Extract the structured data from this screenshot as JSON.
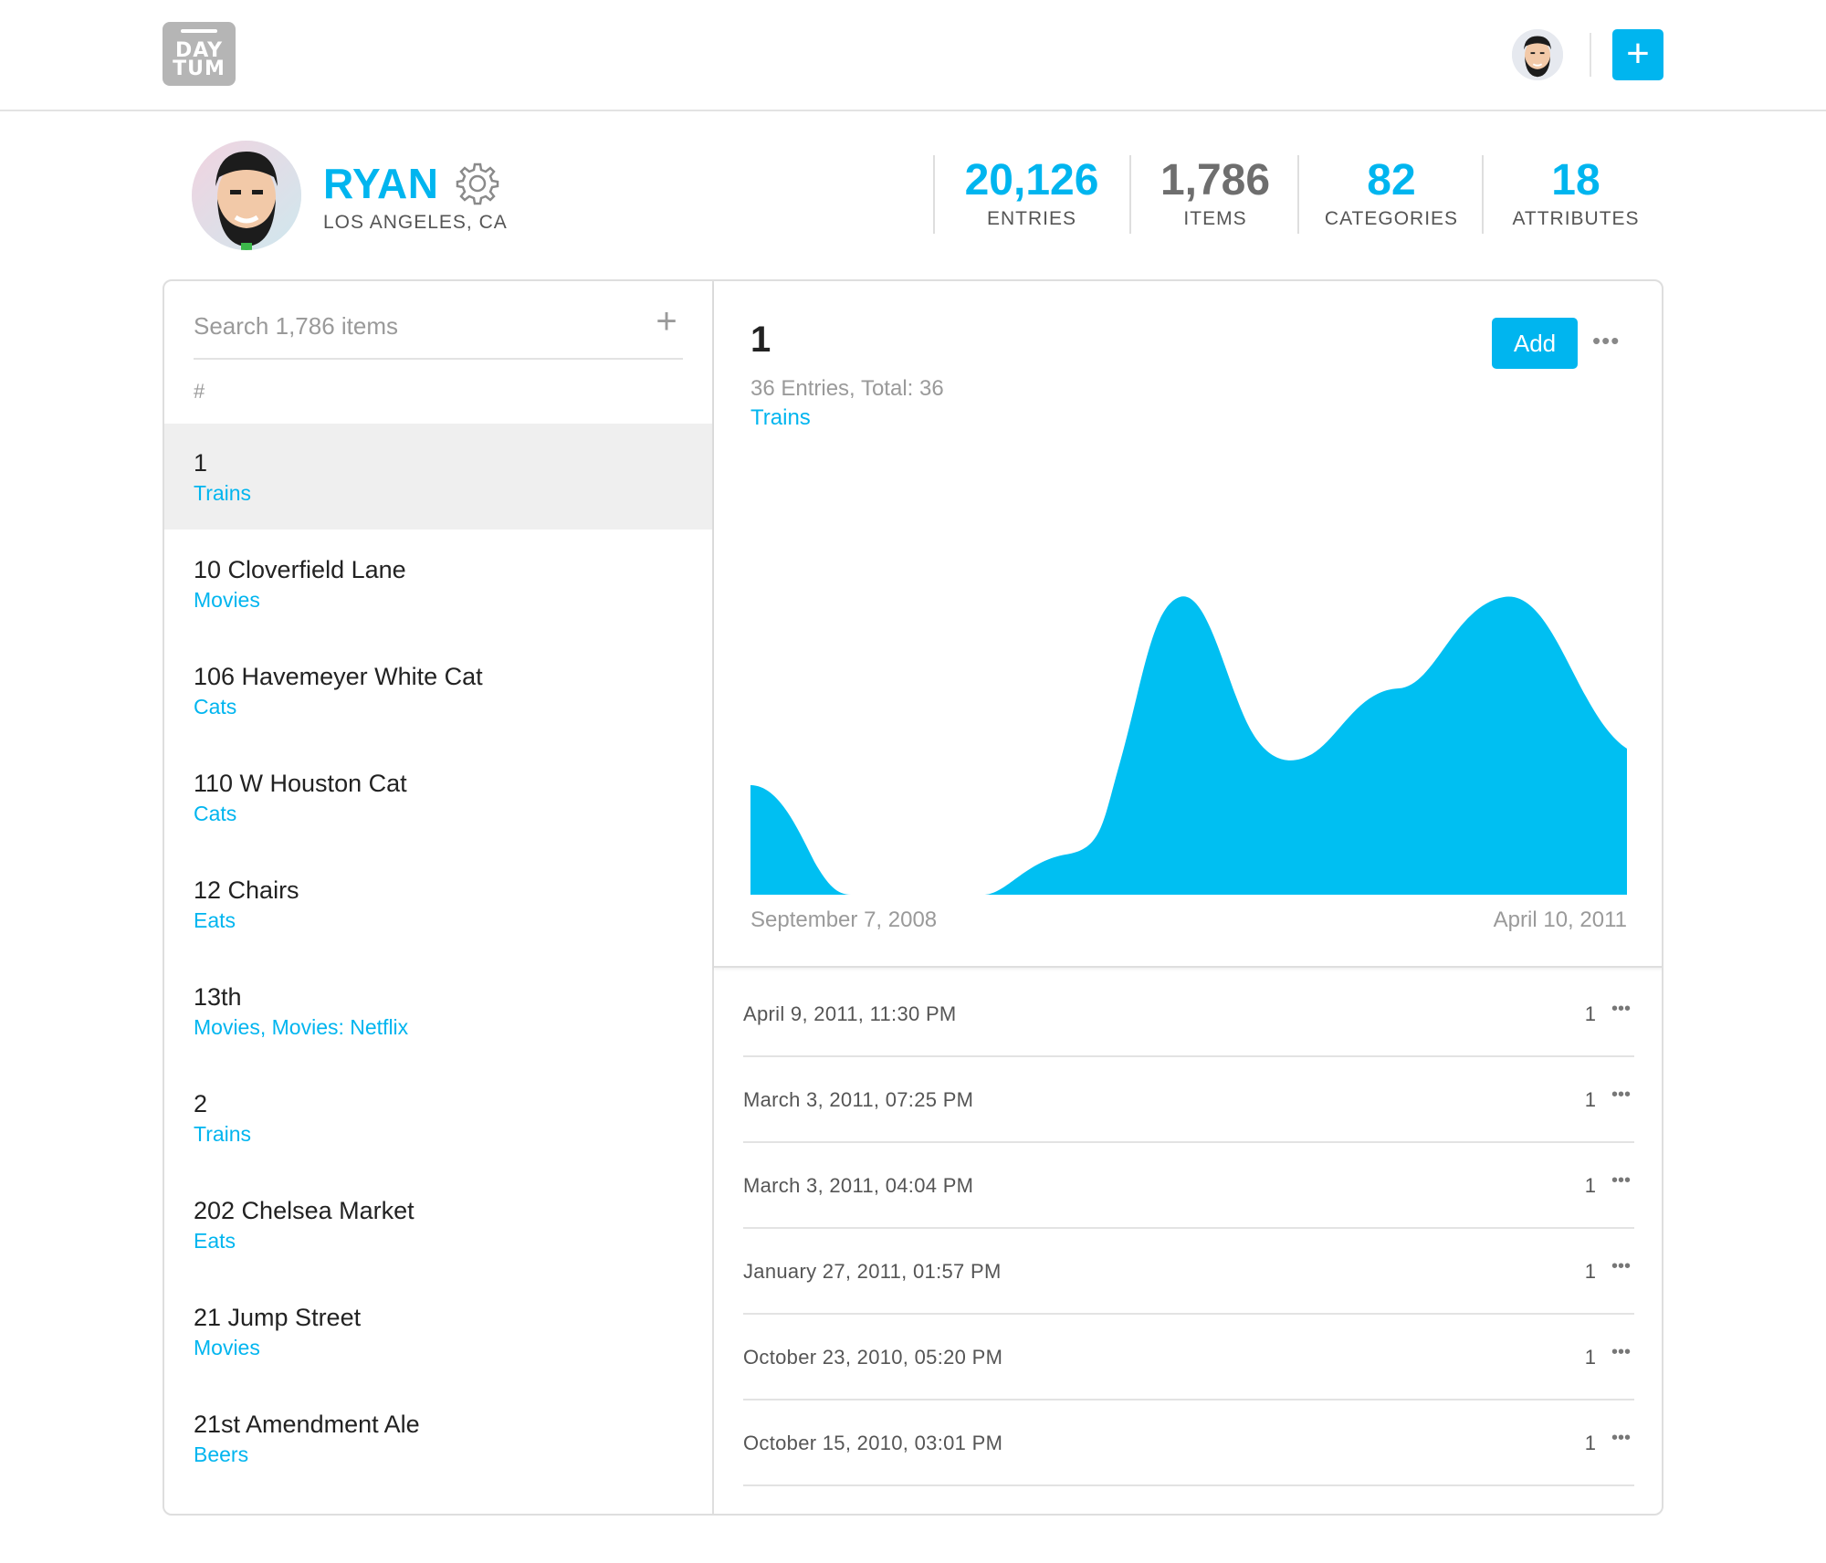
{
  "header": {
    "logo": {
      "line1": "DAY",
      "line2": "TUM"
    },
    "add_label": "+"
  },
  "profile": {
    "name": "RYAN",
    "location": "LOS ANGELES, CA"
  },
  "stats": [
    {
      "value": "20,126",
      "label": "ENTRIES"
    },
    {
      "value": "1,786",
      "label": "ITEMS"
    },
    {
      "value": "82",
      "label": "CATEGORIES"
    },
    {
      "value": "18",
      "label": "ATTRIBUTES"
    }
  ],
  "sidebar": {
    "search_placeholder": "Search 1,786 items",
    "add_icon": "+",
    "section_label": "#",
    "items": [
      {
        "title": "1",
        "category": "Trains"
      },
      {
        "title": "10 Cloverfield Lane",
        "category": "Movies"
      },
      {
        "title": "106 Havemeyer White Cat",
        "category": "Cats"
      },
      {
        "title": "110 W Houston Cat",
        "category": "Cats"
      },
      {
        "title": "12 Chairs",
        "category": "Eats"
      },
      {
        "title": "13th",
        "category": "Movies, Movies: Netflix"
      },
      {
        "title": "2",
        "category": "Trains"
      },
      {
        "title": "202 Chelsea Market",
        "category": "Eats"
      },
      {
        "title": "21 Jump Street",
        "category": "Movies"
      },
      {
        "title": "21st Amendment Ale",
        "category": "Beers"
      }
    ]
  },
  "detail": {
    "title": "1",
    "meta": "36 Entries, Total: 36",
    "category": "Trains",
    "add_label": "Add",
    "more_label": "•••",
    "date_start": "September 7, 2008",
    "date_end": "April 10, 2011",
    "entries": [
      {
        "date": "April 9, 2011, 11:30 PM",
        "value": "1"
      },
      {
        "date": "March 3, 2011, 07:25 PM",
        "value": "1"
      },
      {
        "date": "March 3, 2011, 04:04 PM",
        "value": "1"
      },
      {
        "date": "January 27, 2011, 01:57 PM",
        "value": "1"
      },
      {
        "date": "October 23, 2010, 05:20 PM",
        "value": "1"
      },
      {
        "date": "October 15, 2010, 03:01 PM",
        "value": "1"
      }
    ],
    "entry_more_label": "•••"
  },
  "colors": {
    "accent": "#00b5ef",
    "chart_fill": "#00bff2",
    "muted_text": "#9a9a9a",
    "selected_row": "#efefef"
  }
}
